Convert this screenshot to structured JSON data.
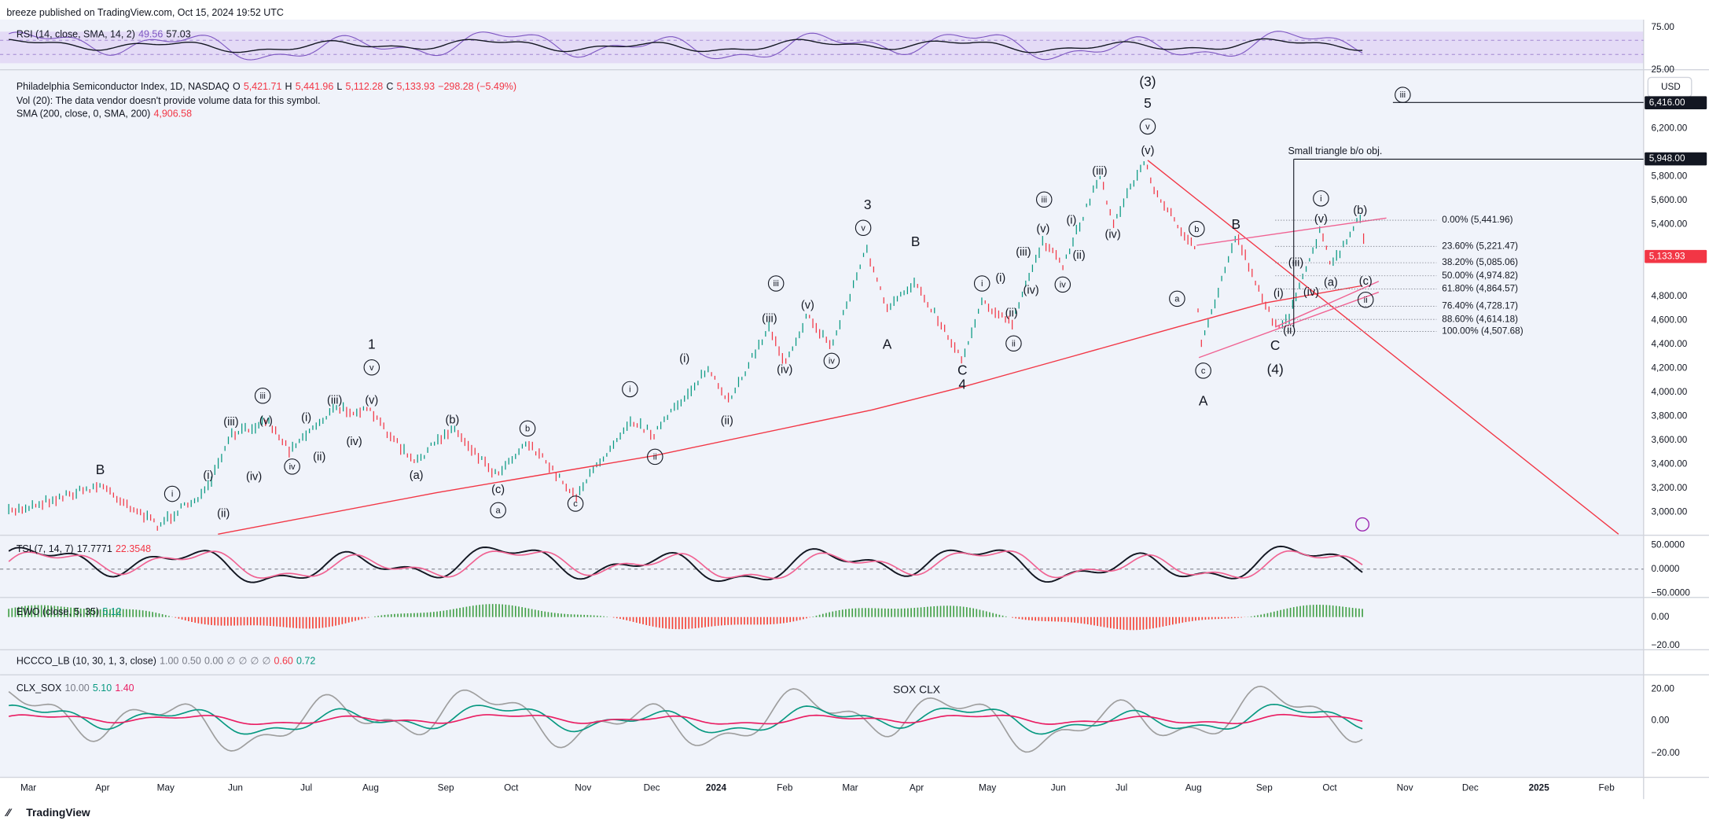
{
  "header": {
    "publisher": "breeze published on TradingView.com, Oct 15, 2024 19:52 UTC"
  },
  "rsi": {
    "legend": "RSI (14, close, SMA, 14, 2)",
    "value": "49.56",
    "sma": "57.03",
    "axis": [
      "75.00",
      "25.00"
    ]
  },
  "main": {
    "symbol": "Philadelphia Semiconductor Index, 1D, NASDAQ",
    "ohlc": [
      {
        "key": "O",
        "value": "5,421.71"
      },
      {
        "key": "H",
        "value": "5,441.96"
      },
      {
        "key": "L",
        "value": "5,112.28"
      },
      {
        "key": "C",
        "value": "5,133.93"
      }
    ],
    "change": "−298.28 (−5.49%)",
    "volume": "Vol (20): The data vendor doesn't provide volume data for this symbol.",
    "sma_legend": "SMA (200, close, 0, SMA, 200)",
    "sma_value": "4,906.58",
    "currency": "USD",
    "price_axis": [
      "6,200.00",
      "5,800.00",
      "5,600.00",
      "5,400.00",
      "4,800.00",
      "4,600.00",
      "4,400.00",
      "4,200.00",
      "4,000.00",
      "3,800.00",
      "3,600.00",
      "3,400.00",
      "3,200.00",
      "3,000.00"
    ],
    "price_tags": {
      "target_high": "6,416.00",
      "target_low": "5,948.00",
      "last": "5,133.93"
    },
    "annotation": "Small triangle b/o obj.",
    "fib_levels": [
      "0.00% (5,441.96)",
      "23.60% (5,221.47)",
      "38.20% (5,085.06)",
      "50.00% (4,974.82)",
      "61.80% (4,864.57)",
      "76.40% (4,728.17)",
      "88.60% (4,614.18)",
      "100.00% (4,507.68)"
    ],
    "waves": [
      "B",
      "i",
      "(i)",
      "(ii)",
      "(iii)",
      "(iv)",
      "(v)",
      "iii",
      "iv",
      "(i)",
      "(ii)",
      "(iii)",
      "(iv)",
      "(v)",
      "v",
      "1",
      "(a)",
      "(b)",
      "(c)",
      "a",
      "b",
      "c",
      "i",
      "ii",
      "(i)",
      "(ii)",
      "(iii)",
      "iii",
      "(iv)",
      "(v)",
      "iv",
      "v",
      "3",
      "B",
      "A",
      "C",
      "4",
      "i",
      "(i)",
      "(ii)",
      "ii",
      "(iii)",
      "(iv)",
      "(v)",
      "iii",
      "iv",
      "(i)",
      "(ii)",
      "(iii)",
      "(iv)",
      "(v)",
      "v",
      "5",
      "(3)",
      "b",
      "a",
      "c",
      "A",
      "B",
      "C",
      "(4)",
      "(i)",
      "(ii)",
      "(iii)",
      "(iv)",
      "(v)",
      "i",
      "(a)",
      "(b)",
      "(c)",
      "ii",
      "iii"
    ]
  },
  "tsi": {
    "legend": "TSI (7, 14, 7)",
    "value": "17.7771",
    "signal": "22.3548",
    "axis": [
      "50.0000",
      "0.0000",
      "−50.0000"
    ]
  },
  "ewo": {
    "legend": "EWO (close, 5, 35)",
    "value": "5.12",
    "axis": [
      "0.00",
      "−20.00"
    ]
  },
  "hccco": {
    "legend": "HCCCO_LB (10, 30, 1, 3, close)",
    "values": [
      "1.00",
      "0.50",
      "0.00",
      "∅",
      "∅",
      "∅",
      "∅"
    ],
    "red": "0.60",
    "green": "0.72"
  },
  "clx": {
    "legend": "CLX_SOX",
    "values": [
      "10.00",
      "5.10",
      "1.40"
    ],
    "annotation": "SOX CLX",
    "axis": [
      "20.00",
      "0.00",
      "−20.00"
    ]
  },
  "time_axis": [
    "Mar",
    "Apr",
    "May",
    "Jun",
    "Jul",
    "Aug",
    "Sep",
    "Oct",
    "Nov",
    "Dec",
    "2024",
    "Feb",
    "Mar",
    "Apr",
    "May",
    "Jun",
    "Jul",
    "Aug",
    "Sep",
    "Oct",
    "Nov",
    "Dec",
    "2025",
    "Feb"
  ],
  "footer": {
    "brand": "TradingView"
  }
}
